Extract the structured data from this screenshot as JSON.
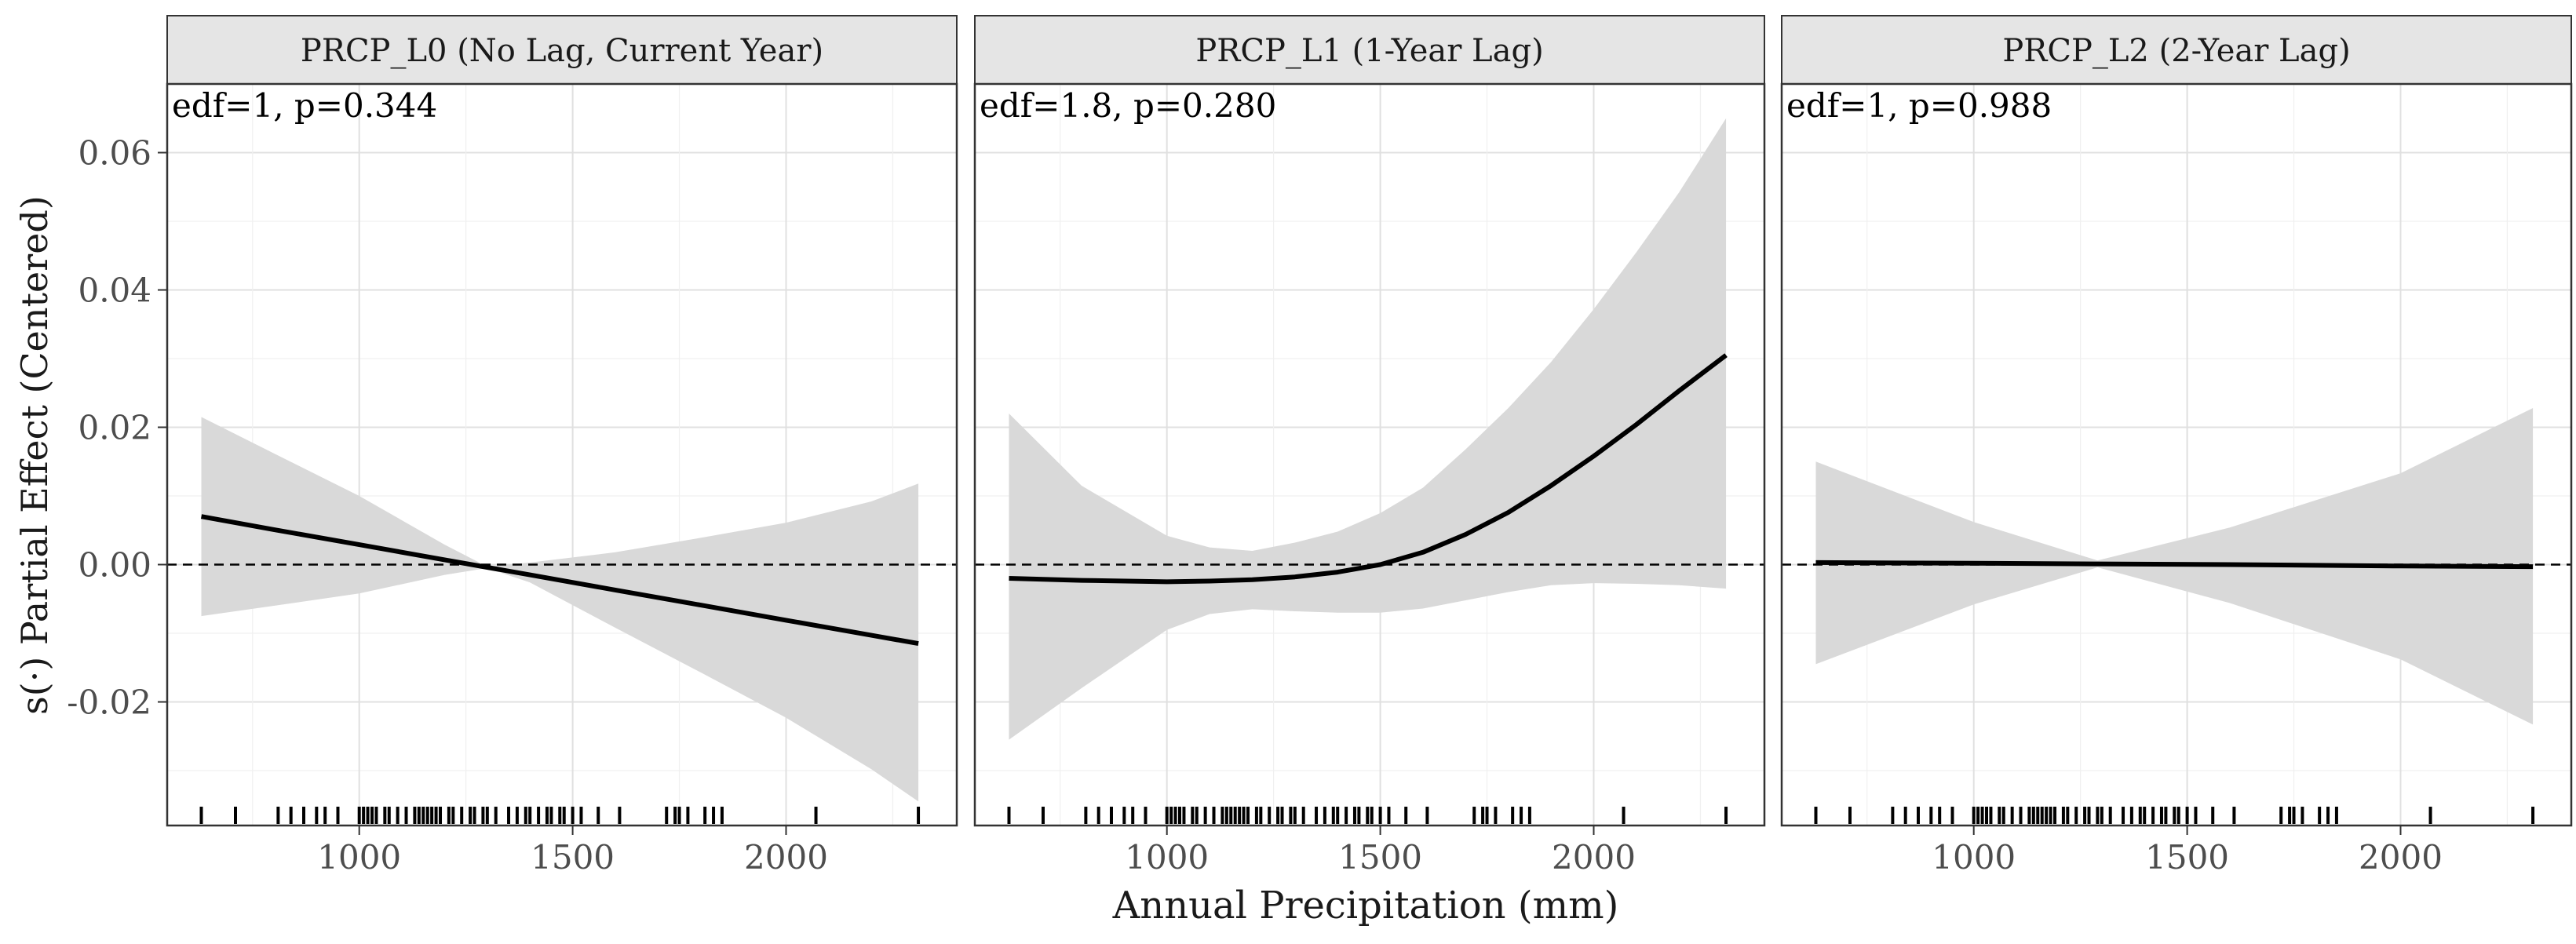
{
  "chart_data": {
    "type": "line",
    "xlabel": "Annual Precipitation (mm)",
    "ylabel": "s(·) Partial Effect (Centered)",
    "xlim": [
      550,
      2400
    ],
    "ylim": [
      -0.038,
      0.07
    ],
    "x_ticks": [
      1000,
      1500,
      2000
    ],
    "x_tick_labels": [
      "1000",
      "1500",
      "2000"
    ],
    "y_ticks": [
      0.06,
      0.04,
      0.02,
      0.0,
      -0.02
    ],
    "y_tick_labels": [
      "0.06",
      "0.04",
      "0.02",
      "0.00",
      "-0.02"
    ],
    "grid": true,
    "reference_line_y": 0,
    "colors": {
      "line": "#000000",
      "band": "#d9d9d9",
      "strip_bg": "#e5e5e5",
      "grid": "#e0e0e0",
      "reference": "#000000"
    },
    "rug_x": [
      630,
      710,
      810,
      840,
      870,
      900,
      920,
      950,
      1000,
      1010,
      1020,
      1030,
      1040,
      1060,
      1070,
      1090,
      1110,
      1130,
      1140,
      1150,
      1160,
      1170,
      1180,
      1190,
      1210,
      1220,
      1240,
      1260,
      1270,
      1290,
      1300,
      1320,
      1350,
      1370,
      1390,
      1400,
      1420,
      1440,
      1450,
      1470,
      1480,
      1500,
      1520,
      1560,
      1610,
      1720,
      1740,
      1750,
      1770,
      1810,
      1830,
      1850,
      2070,
      2310
    ],
    "panels": [
      {
        "strip": "PRCP_L0 (No Lag, Current Year)",
        "annotation": "edf=1, p=0.344",
        "series": [
          {
            "x": [
              630,
              800,
              1000,
              1200,
              1300,
              1400,
              1600,
              1800,
              2000,
              2200,
              2310
            ],
            "y": [
              0.007,
              0.0051,
              0.0029,
              0.0007,
              -0.0004,
              -0.0015,
              -0.0037,
              -0.0059,
              -0.0081,
              -0.0103,
              -0.0115
            ],
            "lower": [
              -0.0075,
              -0.006,
              -0.0042,
              -0.0015,
              -0.0005,
              -0.0026,
              -0.0092,
              -0.0157,
              -0.0223,
              -0.0298,
              -0.0345
            ],
            "upper": [
              0.0215,
              0.0162,
              0.01,
              0.0029,
              -0.0003,
              0.0003,
              0.0018,
              0.0039,
              0.0061,
              0.0092,
              0.0118
            ]
          }
        ]
      },
      {
        "strip": "PRCP_L1 (1-Year Lag)",
        "annotation": "edf=1.8, p=0.280",
        "series": [
          {
            "x": [
              630,
              800,
              1000,
              1100,
              1200,
              1300,
              1400,
              1500,
              1600,
              1700,
              1800,
              1900,
              2000,
              2100,
              2200,
              2310
            ],
            "y": [
              -0.002,
              -0.0023,
              -0.0025,
              -0.0024,
              -0.0022,
              -0.0018,
              -0.0011,
              0.0,
              0.0018,
              0.0044,
              0.0076,
              0.0115,
              0.0158,
              0.0204,
              0.0253,
              0.0305
            ],
            "lower": [
              -0.0255,
              -0.018,
              -0.0095,
              -0.0072,
              -0.0065,
              -0.0068,
              -0.007,
              -0.007,
              -0.0064,
              -0.0052,
              -0.004,
              -0.003,
              -0.0027,
              -0.0028,
              -0.003,
              -0.0035
            ],
            "upper": [
              0.022,
              0.0115,
              0.0042,
              0.0025,
              0.002,
              0.0032,
              0.0048,
              0.0075,
              0.0112,
              0.0168,
              0.0228,
              0.0295,
              0.0372,
              0.0455,
              0.0542,
              0.065
            ]
          }
        ]
      },
      {
        "strip": "PRCP_L2 (2-Year Lag)",
        "annotation": "edf=1, p=0.988",
        "series": [
          {
            "x": [
              630,
              1000,
              1290,
              1600,
              2000,
              2310
            ],
            "y": [
              0.0003,
              0.0002,
              0.0001,
              0.0,
              -0.0002,
              -0.0003
            ],
            "lower": [
              -0.0145,
              -0.0058,
              -0.0004,
              -0.0056,
              -0.0138,
              -0.0233
            ],
            "upper": [
              0.015,
              0.0062,
              0.0006,
              0.0054,
              0.0133,
              0.0228
            ]
          }
        ]
      }
    ]
  }
}
